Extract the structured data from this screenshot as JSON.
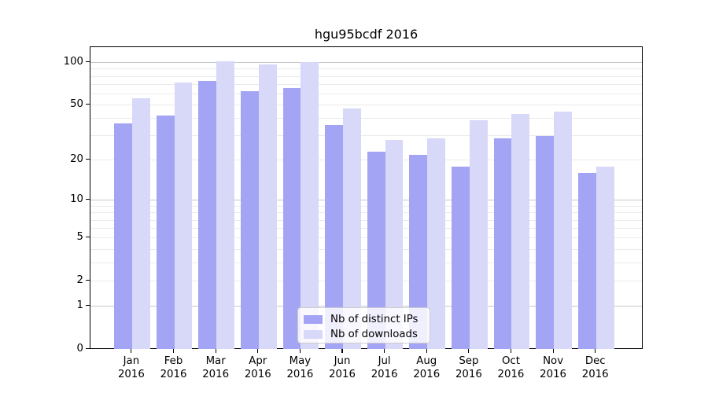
{
  "chart_data": {
    "type": "bar",
    "title": "hgu95bcdf 2016",
    "categories": [
      "Jan 2016",
      "Feb 2016",
      "Mar 2016",
      "Apr 2016",
      "May 2016",
      "Jun 2016",
      "Jul 2016",
      "Aug 2016",
      "Sep 2016",
      "Oct 2016",
      "Nov 2016",
      "Dec 2016"
    ],
    "x_tick_months": [
      "Jan",
      "Feb",
      "Mar",
      "Apr",
      "May",
      "Jun",
      "Jul",
      "Aug",
      "Sep",
      "Oct",
      "Nov",
      "Dec"
    ],
    "x_tick_year": "2016",
    "series": [
      {
        "name": "Nb of distinct IPs",
        "color": "#a4a4f4",
        "values": [
          37,
          42,
          74,
          63,
          66,
          36,
          23,
          22,
          18,
          29,
          30,
          16
        ]
      },
      {
        "name": "Nb of downloads",
        "color": "#d8d8f9",
        "values": [
          56,
          72,
          102,
          97,
          101,
          47,
          28,
          29,
          39,
          43,
          45,
          18
        ]
      }
    ],
    "y_axis": {
      "scale": "log1p",
      "ticks": [
        0,
        1,
        2,
        5,
        10,
        20,
        50,
        100
      ],
      "major_gridlines": [
        1,
        10,
        100
      ],
      "minor_gridlines": [
        2,
        3,
        4,
        5,
        6,
        7,
        8,
        9,
        20,
        30,
        40,
        50,
        60,
        70,
        80,
        90
      ],
      "ylim": [
        0,
        115
      ]
    },
    "legend": {
      "position": "lower center",
      "entries": [
        "Nb of distinct IPs",
        "Nb of downloads"
      ]
    },
    "grid": true
  },
  "colors": {
    "bar_distinct_ips": "#a4a4f4",
    "bar_downloads": "#d8d8f9",
    "grid_major": "#c8c8c8",
    "grid_minor": "#ebebeb",
    "spine": "#000000",
    "legend_border": "#cccccc",
    "background": "#ffffff"
  }
}
